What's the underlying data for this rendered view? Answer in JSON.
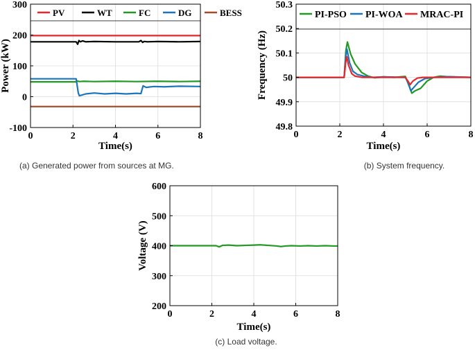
{
  "chart_data": [
    {
      "id": "a",
      "type": "line",
      "caption": "(a)  Generated power from sources at MG.",
      "xlabel": "Time(s)",
      "ylabel": "Power (kW)",
      "xlim": [
        0,
        8
      ],
      "ylim": [
        -100,
        300
      ],
      "xticks": [
        0,
        2,
        4,
        6,
        8
      ],
      "yticks": [
        -100,
        0,
        100,
        200,
        300
      ],
      "series": [
        {
          "name": "PV",
          "color": "#e8262b",
          "x": [
            0,
            8
          ],
          "y": [
            198,
            198
          ]
        },
        {
          "name": "WT",
          "color": "#000000",
          "x": [
            0,
            2.15,
            2.22,
            2.28,
            2.35,
            2.45,
            2.6,
            3.0,
            4.0,
            5.1,
            5.2,
            5.28,
            5.35,
            5.5,
            6.0,
            7.0,
            8.0
          ],
          "y": [
            178,
            178,
            170,
            182,
            178,
            181,
            178,
            179,
            178,
            178,
            182,
            176,
            179,
            178,
            179,
            178,
            179
          ]
        },
        {
          "name": "FC",
          "color": "#219a22",
          "x": [
            0,
            2.15,
            2.2,
            2.3,
            2.5,
            3,
            4,
            5,
            6,
            7,
            8
          ],
          "y": [
            48,
            48,
            51,
            49,
            50,
            49,
            50,
            49,
            50,
            49,
            50
          ]
        },
        {
          "name": "DG",
          "color": "#1b75bb",
          "x": [
            0,
            2.15,
            2.25,
            2.3,
            2.4,
            2.6,
            3.0,
            3.5,
            4.0,
            4.5,
            5.0,
            5.2,
            5.3,
            5.45,
            5.8,
            6.3,
            7.0,
            8.0
          ],
          "y": [
            58,
            58,
            12,
            3,
            5,
            9,
            12,
            9,
            11,
            9,
            11,
            10,
            35,
            30,
            33,
            32,
            34,
            33
          ]
        },
        {
          "name": "BESS",
          "color": "#a64b2a",
          "x": [
            0,
            8
          ],
          "y": [
            -32,
            -32
          ]
        }
      ],
      "legend": "top, horizontal"
    },
    {
      "id": "b",
      "type": "line",
      "caption": "(b) System frequency.",
      "xlabel": "Time(s)",
      "ylabel": "Frequency (Hz)",
      "xlim": [
        0,
        8
      ],
      "ylim": [
        49.8,
        50.3
      ],
      "xticks": [
        0,
        2,
        4,
        6,
        8
      ],
      "yticks": [
        49.8,
        49.9,
        50,
        50.1,
        50.2,
        50.3
      ],
      "series": [
        {
          "name": "PI-PSO",
          "color": "#219a22",
          "x": [
            0,
            2.2,
            2.28,
            2.35,
            2.5,
            2.7,
            3.0,
            3.3,
            3.6,
            4.0,
            4.5,
            5.0,
            5.15,
            5.3,
            5.45,
            5.7,
            6.0,
            6.3,
            6.6,
            7.0,
            8.0
          ],
          "y": [
            50,
            50,
            50.11,
            50.145,
            50.095,
            50.055,
            50.02,
            50.005,
            49.998,
            50.002,
            50.0,
            50.004,
            49.97,
            49.935,
            49.945,
            49.955,
            49.985,
            50.0,
            50.005,
            50.002,
            50.0
          ]
        },
        {
          "name": "PI-WOA",
          "color": "#1b75bb",
          "x": [
            0,
            2.2,
            2.28,
            2.33,
            2.45,
            2.6,
            2.8,
            3.1,
            3.5,
            4.0,
            5.0,
            5.15,
            5.25,
            5.4,
            5.6,
            5.9,
            6.3,
            7.0,
            8.0
          ],
          "y": [
            50,
            50,
            50.09,
            50.115,
            50.06,
            50.025,
            50.012,
            50.005,
            50.0,
            50.002,
            50.0,
            49.975,
            49.945,
            49.96,
            49.98,
            49.995,
            50.0,
            50.003,
            50.0
          ]
        },
        {
          "name": "MRAC-PI",
          "color": "#e8262b",
          "x": [
            0,
            2.2,
            2.27,
            2.32,
            2.4,
            2.55,
            2.7,
            3.0,
            3.5,
            5.0,
            5.12,
            5.22,
            5.35,
            5.55,
            5.8,
            6.2,
            8.0
          ],
          "y": [
            50,
            50,
            50.06,
            50.085,
            50.05,
            50.015,
            50.005,
            50.0,
            50.0,
            50.0,
            49.985,
            49.97,
            49.985,
            49.997,
            50.0,
            50.0,
            50.0
          ]
        }
      ],
      "legend": "top, horizontal"
    },
    {
      "id": "c",
      "type": "line",
      "caption": "(c) Load voltage.",
      "xlabel": "Time(s)",
      "ylabel": "Voltage (V)",
      "xlim": [
        0,
        8
      ],
      "ylim": [
        200,
        600
      ],
      "xticks": [
        0,
        2,
        4,
        6,
        8
      ],
      "yticks": [
        200,
        300,
        400,
        500,
        600
      ],
      "series": [
        {
          "name": "Voltage",
          "color": "#219a22",
          "x": [
            0,
            2.2,
            2.35,
            2.5,
            2.8,
            3.2,
            3.6,
            4.0,
            4.3,
            4.7,
            5.1,
            5.3,
            5.5,
            5.8,
            6.2,
            6.6,
            7.0,
            7.4,
            7.8,
            8.0
          ],
          "y": [
            400,
            400,
            396,
            401,
            402,
            400,
            401,
            402,
            403,
            401,
            399,
            397,
            399,
            400,
            399,
            400,
            399,
            400,
            399,
            399
          ]
        }
      ]
    }
  ]
}
